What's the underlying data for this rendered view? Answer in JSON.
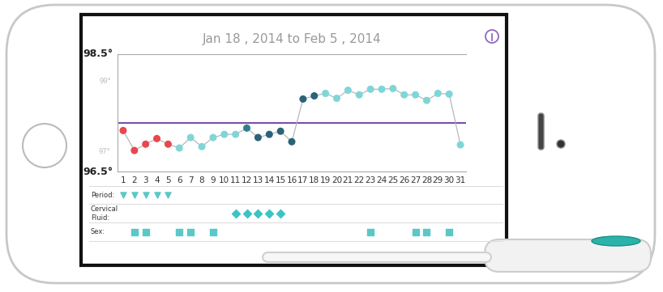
{
  "chart_data": {
    "type": "line",
    "title": "Jan 18 , 2014 to Feb 5 , 2014",
    "x": [
      1,
      2,
      3,
      4,
      5,
      6,
      7,
      8,
      9,
      10,
      11,
      12,
      13,
      14,
      15,
      16,
      17,
      18,
      19,
      20,
      21,
      22,
      23,
      24,
      25,
      26,
      27,
      28,
      29,
      30,
      31
    ],
    "values": [
      97.57,
      97.0,
      97.18,
      97.34,
      97.18,
      97.07,
      97.37,
      97.11,
      97.37,
      97.46,
      97.46,
      97.64,
      97.37,
      97.46,
      97.55,
      97.25,
      98.47,
      98.56,
      98.63,
      98.49,
      98.72,
      98.59,
      98.75,
      98.75,
      98.77,
      98.59,
      98.59,
      98.43,
      98.63,
      98.61,
      97.16
    ],
    "color": "#b0b0b0",
    "colors": [
      "#e8484d",
      "#e8484d",
      "#e8484d",
      "#e8484d",
      "#e8484d",
      "#7fd6d6",
      "#7fd6d6",
      "#7fd6d6",
      "#7fd6d6",
      "#7fd6d6",
      "#7fd6d6",
      "#2f7f8f",
      "#2a6378",
      "#2a6378",
      "#2a6378",
      "#2a6378",
      "#2a6378",
      "#2a6378",
      "#7fd6d6",
      "#7fd6d6",
      "#7fd6d6",
      "#7fd6d6",
      "#7fd6d6",
      "#7fd6d6",
      "#7fd6d6",
      "#7fd6d6",
      "#7fd6d6",
      "#7fd6d6",
      "#7fd6d6",
      "#7fd6d6",
      "#7fd6d6"
    ],
    "marker": "circle",
    "xlim": [
      0.5,
      31.5
    ],
    "xticks": [
      1,
      2,
      3,
      4,
      5,
      6,
      7,
      8,
      9,
      10,
      11,
      12,
      13,
      14,
      15,
      16,
      17,
      18,
      19,
      20,
      21,
      22,
      23,
      24,
      25,
      26,
      27,
      28,
      29,
      30,
      31
    ],
    "ylim": [
      96.4,
      99.75
    ],
    "yticks": [
      {
        "value": 97,
        "label": "97°"
      },
      {
        "value": 99,
        "label": "99°"
      }
    ],
    "grid": false,
    "coverline": {
      "value": 97.78,
      "color": "#7b4fa8"
    },
    "axis_end_labels": {
      "top": "98.5°",
      "bottom": "96.5°"
    },
    "rows": [
      {
        "name": "Period:",
        "days": [
          1,
          2,
          3,
          4,
          5
        ],
        "color": "#5bc8c8",
        "marker": "drop"
      },
      {
        "name": "Cervical\nFluid:",
        "days": [
          11,
          12,
          13,
          14,
          15
        ],
        "color": "#3cc4c4",
        "marker": "diamond"
      },
      {
        "name": "Sex:",
        "days": [
          2,
          3,
          6,
          7,
          9,
          23,
          27,
          28,
          30
        ],
        "color": "#5bc8c8",
        "marker": "lock"
      }
    ]
  }
}
